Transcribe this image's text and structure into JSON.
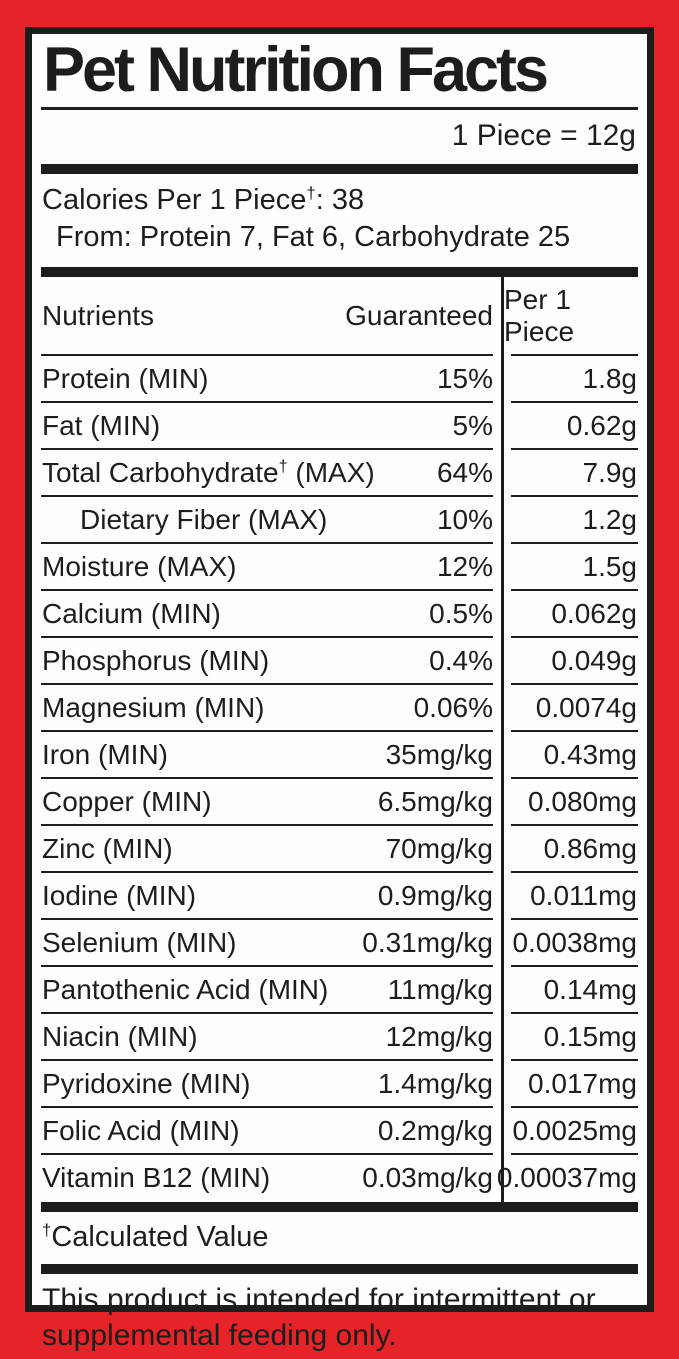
{
  "colors": {
    "border_red": "#e52329",
    "ink_black": "#1d1d1b",
    "background_white": "#fffefc"
  },
  "header": {
    "title": "Pet Nutrition Facts",
    "serving": "1 Piece = 12g"
  },
  "calories": {
    "pre": "Calories Per 1 Piece",
    "sup": "†",
    "post": ": 38",
    "from": "From: Protein 7, Fat 6, Carbohydrate 25"
  },
  "table": {
    "columns": {
      "nutrients": "Nutrients",
      "guaranteed": "Guaranteed",
      "per_piece": "Per 1 Piece"
    },
    "rows": [
      {
        "name": "Protein (MIN)",
        "guaranteed": "15%",
        "per_piece": "1.8g"
      },
      {
        "name": "Fat (MIN)",
        "guaranteed": "5%",
        "per_piece": "0.62g"
      },
      {
        "name": "Total Carbohydrate",
        "name_sup": "†",
        "name_rest": " (MAX)",
        "guaranteed": "64%",
        "per_piece": "7.9g"
      },
      {
        "name": "Dietary Fiber (MAX)",
        "indent": true,
        "guaranteed": "10%",
        "per_piece": "1.2g"
      },
      {
        "name": "Moisture (MAX)",
        "guaranteed": "12%",
        "per_piece": "1.5g"
      },
      {
        "name": "Calcium (MIN)",
        "guaranteed": "0.5%",
        "per_piece": "0.062g"
      },
      {
        "name": "Phosphorus (MIN)",
        "guaranteed": "0.4%",
        "per_piece": "0.049g"
      },
      {
        "name": "Magnesium (MIN)",
        "guaranteed": "0.06%",
        "per_piece": "0.0074g"
      },
      {
        "name": "Iron (MIN)",
        "guaranteed": "35mg/kg",
        "per_piece": "0.43mg"
      },
      {
        "name": "Copper (MIN)",
        "guaranteed": "6.5mg/kg",
        "per_piece": "0.080mg"
      },
      {
        "name": "Zinc (MIN)",
        "guaranteed": "70mg/kg",
        "per_piece": "0.86mg"
      },
      {
        "name": "Iodine (MIN)",
        "guaranteed": "0.9mg/kg",
        "per_piece": "0.011mg"
      },
      {
        "name": "Selenium (MIN)",
        "guaranteed": "0.31mg/kg",
        "per_piece": "0.0038mg"
      },
      {
        "name": "Pantothenic Acid (MIN)",
        "guaranteed": "11mg/kg",
        "per_piece": "0.14mg"
      },
      {
        "name": "Niacin (MIN)",
        "guaranteed": "12mg/kg",
        "per_piece": "0.15mg"
      },
      {
        "name": "Pyridoxine (MIN)",
        "guaranteed": "1.4mg/kg",
        "per_piece": "0.017mg"
      },
      {
        "name": "Folic Acid (MIN)",
        "guaranteed": "0.2mg/kg",
        "per_piece": "0.0025mg"
      },
      {
        "name": "Vitamin B12 (MIN)",
        "guaranteed": "0.03mg/kg",
        "per_piece": "0.00037mg"
      }
    ]
  },
  "footnote": {
    "sup": "†",
    "text": "Calculated Value"
  },
  "disclaimer": "This product is intended for intermittent or supplemental feeding only."
}
